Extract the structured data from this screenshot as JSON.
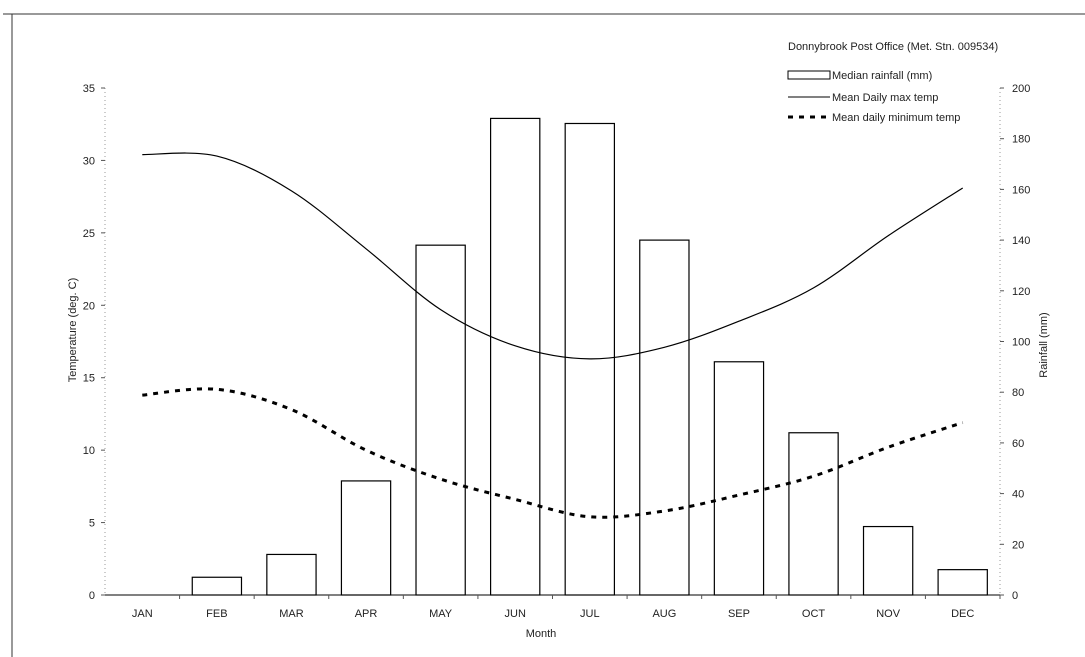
{
  "chart_data": {
    "type": "bar",
    "title": "Donnybrook Post Office (Met. Stn. 009534)",
    "xlabel": "Month",
    "ylabel_left": "Temperature (deg. C)",
    "ylabel_right": "Rainfall (mm)",
    "categories": [
      "JAN",
      "FEB",
      "MAR",
      "APR",
      "MAY",
      "JUN",
      "JUL",
      "AUG",
      "SEP",
      "OCT",
      "NOV",
      "DEC"
    ],
    "ylim_left": [
      0,
      35
    ],
    "yticks_left": [
      0,
      5,
      10,
      15,
      20,
      25,
      30,
      35
    ],
    "ylim_right": [
      0,
      200
    ],
    "yticks_right": [
      0,
      20,
      40,
      60,
      80,
      100,
      120,
      140,
      160,
      180,
      200
    ],
    "legend_position": "top-right",
    "grid": false,
    "series": [
      {
        "name": "Median rainfall (mm)",
        "kind": "bar",
        "axis": "right",
        "values": [
          0,
          7,
          16,
          45,
          138,
          188,
          186,
          140,
          92,
          64,
          27,
          10
        ],
        "color": "#ffffff",
        "stroke": "#000000"
      },
      {
        "name": "Mean Daily max temp",
        "kind": "line",
        "style": "solid",
        "axis": "left",
        "values": [
          30.4,
          30.3,
          27.9,
          23.9,
          19.7,
          17.2,
          16.3,
          17.1,
          18.9,
          21.2,
          24.8,
          28.1
        ],
        "color": "#000000"
      },
      {
        "name": "Mean daily minimum temp",
        "kind": "line",
        "style": "dashed",
        "axis": "left",
        "values": [
          13.8,
          14.2,
          12.8,
          10.0,
          8.0,
          6.6,
          5.4,
          5.8,
          6.9,
          8.2,
          10.2,
          11.9
        ],
        "color": "#000000"
      }
    ]
  }
}
